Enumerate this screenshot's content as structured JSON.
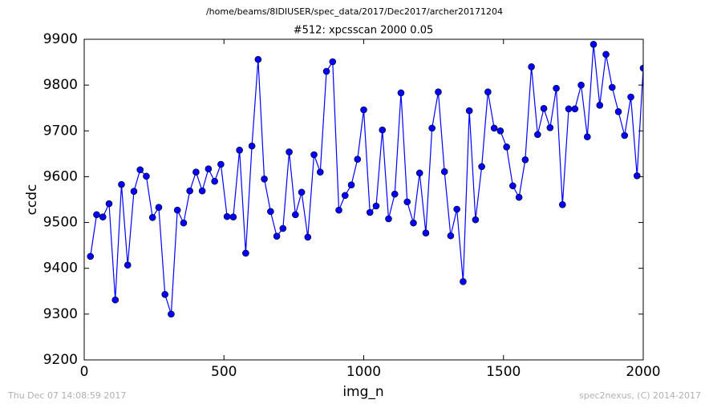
{
  "chart_data": {
    "type": "line",
    "suptitle": "/home/beams/8IDIUSER/spec_data/2017/Dec2017/archer20171204",
    "title": "#512: xpcsscan 2000 0.05",
    "xlabel": "img_n",
    "ylabel": "ccdc",
    "footer_left": "Thu Dec 07 14:08:59 2017",
    "footer_right": "spec2nexus, (C) 2014-2017",
    "xlim": [
      0,
      2000
    ],
    "xticks": [
      0,
      500,
      1000,
      1500,
      2000
    ],
    "ylim": [
      9200,
      9900
    ],
    "yticks": [
      9200,
      9300,
      9400,
      9500,
      9600,
      9700,
      9800,
      9900
    ],
    "x": [
      22.2,
      44.4,
      66.7,
      88.9,
      111.1,
      133.3,
      155.6,
      177.8,
      200,
      222.2,
      244.4,
      266.7,
      288.9,
      311.1,
      333.3,
      355.6,
      377.8,
      400,
      422.2,
      444.4,
      466.7,
      488.9,
      511.1,
      533.3,
      555.6,
      577.8,
      600,
      622.2,
      644.4,
      666.7,
      688.9,
      711.1,
      733.3,
      755.6,
      777.8,
      800,
      822.2,
      844.4,
      866.7,
      888.9,
      911.1,
      933.3,
      955.6,
      977.8,
      1000,
      1022.2,
      1044.4,
      1066.7,
      1088.9,
      1111.1,
      1133.3,
      1155.6,
      1177.8,
      1200,
      1222.2,
      1244.4,
      1266.7,
      1288.9,
      1311.1,
      1333.3,
      1355.6,
      1377.8,
      1400,
      1422.2,
      1444.4,
      1466.7,
      1488.9,
      1511.1,
      1533.3,
      1555.6,
      1577.8,
      1600,
      1622.2,
      1644.4,
      1666.7,
      1688.9,
      1711.1,
      1733.3,
      1755.6,
      1777.8,
      1800,
      1822.2,
      1844.4,
      1866.7,
      1888.9,
      1911.1,
      1933.3,
      1955.6,
      1977.8,
      2000
    ],
    "values": [
      9426,
      9517,
      9512,
      9541,
      9331,
      9583,
      9407,
      9568,
      9615,
      9601,
      9511,
      9533,
      9343,
      9300,
      9527,
      9499,
      9569,
      9610,
      9569,
      9617,
      9590,
      9627,
      9513,
      9512,
      9658,
      9433,
      9667,
      9856,
      9595,
      9524,
      9470,
      9487,
      9654,
      9517,
      9566,
      9468,
      9648,
      9610,
      9830,
      9851,
      9527,
      9559,
      9582,
      9638,
      9746,
      9522,
      9536,
      9702,
      9508,
      9562,
      9783,
      9545,
      9499,
      9608,
      9477,
      9706,
      9785,
      9611,
      9471,
      9529,
      9371,
      9744,
      9506,
      9622,
      9785,
      9706,
      9700,
      9665,
      9580,
      9555,
      9637,
      9840,
      9692,
      9749,
      9707,
      9793,
      9539,
      9748,
      9748,
      9800,
      9687,
      9889,
      9756,
      9867,
      9795,
      9742,
      9690,
      9774,
      9602,
      9837
    ],
    "color": "#0000ff"
  }
}
